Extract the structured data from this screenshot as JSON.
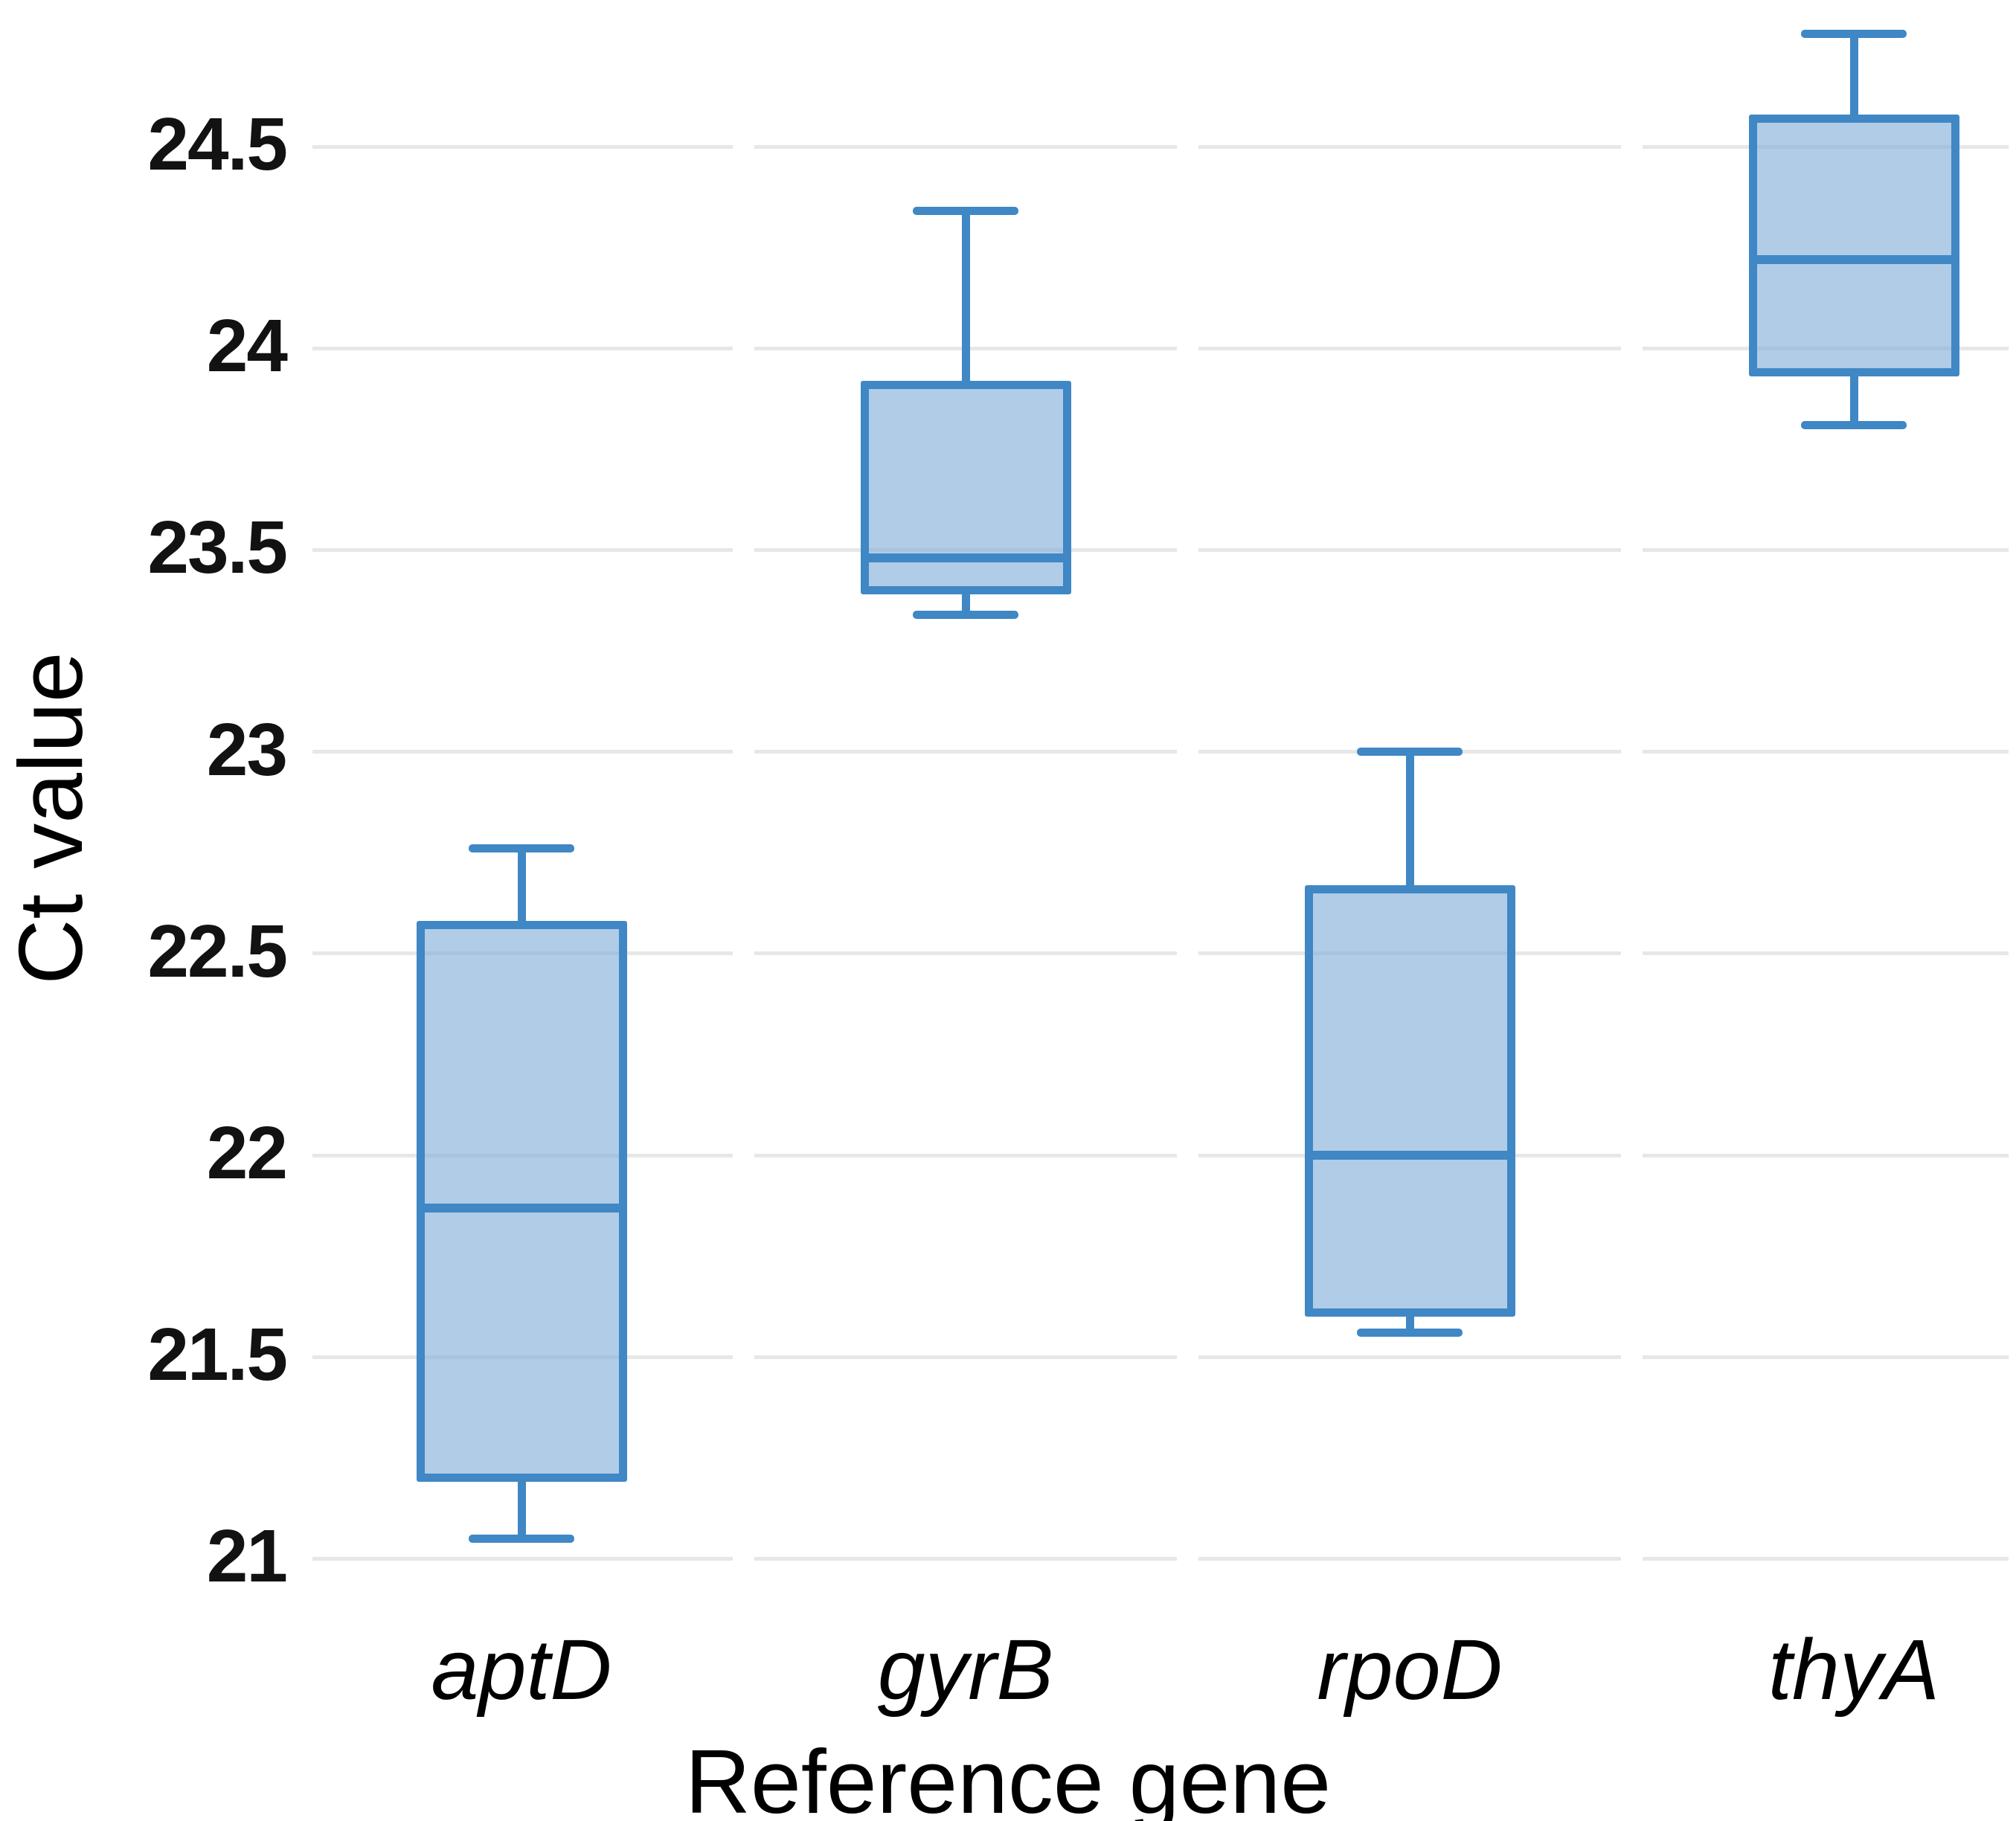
{
  "figure": {
    "xlabel": "Reference gene",
    "ylabel": "Ct value"
  },
  "chart_data": {
    "type": "box",
    "title": "",
    "xlabel": "Reference gene",
    "ylabel": "Ct value",
    "categories": [
      "aptD",
      "gyrB",
      "rpoD",
      "thyA"
    ],
    "series": [
      {
        "name": "aptD",
        "min": 21.05,
        "q1": 21.2,
        "median": 21.87,
        "q3": 22.57,
        "max": 22.76
      },
      {
        "name": "gyrB",
        "min": 23.34,
        "q1": 23.4,
        "median": 23.48,
        "q3": 23.91,
        "max": 24.34
      },
      {
        "name": "rpoD",
        "min": 21.56,
        "q1": 21.61,
        "median": 22.0,
        "q3": 22.66,
        "max": 23.0
      },
      {
        "name": "thyA",
        "min": 23.81,
        "q1": 23.94,
        "median": 24.22,
        "q3": 24.57,
        "max": 24.78
      }
    ],
    "yticks": [
      21,
      21.5,
      22,
      22.5,
      23,
      23.5,
      24,
      24.5
    ],
    "ylim": [
      20.93,
      24.86
    ],
    "grid": "horizontal gridlines, segmented per category band, light gray",
    "legend": "none",
    "orientation": "vertical",
    "colors": {
      "box_fill": "#b3cfe8",
      "box_stroke": "#3f87c5",
      "median": "#3f87c5",
      "gridline": "#e7e7e7",
      "tick_text": "#121212",
      "label_text": "#000000",
      "background": "#ffffff"
    }
  }
}
